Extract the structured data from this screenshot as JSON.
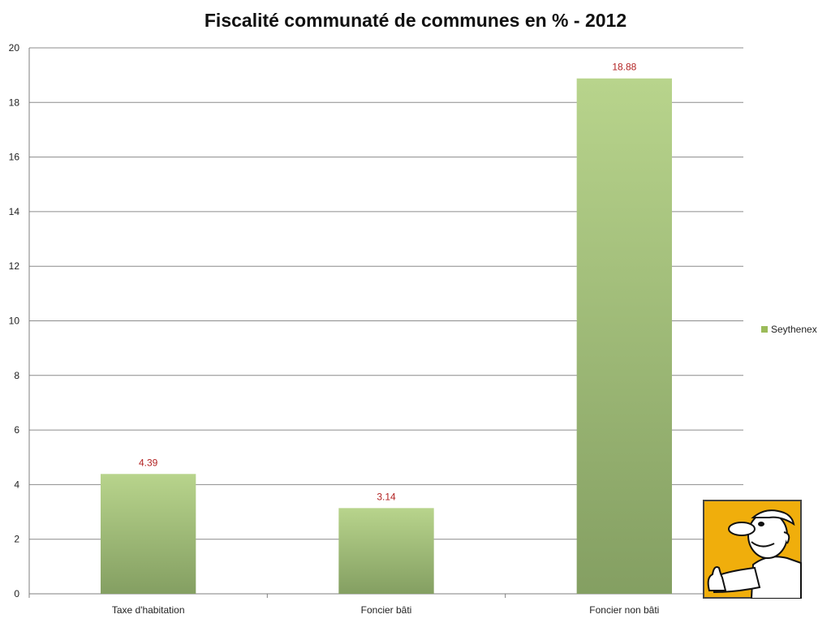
{
  "chart_data": {
    "type": "bar",
    "title": "Fiscalité communaté de communes en % - 2012",
    "xlabel": "",
    "ylabel": "",
    "categories": [
      "Taxe d'habitation",
      "Foncier bâti",
      "Foncier non bâti"
    ],
    "series": [
      {
        "name": "Seythenex",
        "values": [
          4.39,
          3.14,
          18.88
        ]
      }
    ],
    "ylim": [
      0,
      20
    ],
    "yticks": [
      0,
      2,
      4,
      6,
      8,
      10,
      12,
      14,
      16,
      18,
      20
    ],
    "data_labels": [
      "4.39",
      "3.14",
      "18.88"
    ],
    "grid": true,
    "legend_position": "right",
    "colors": {
      "bar_top": "#b8d48c",
      "bar_bottom": "#849f62",
      "data_label": "#b22222",
      "legend_swatch": "#9bbb59",
      "gridline": "#8c8c8c"
    }
  },
  "mascot": {
    "icon": "thumbs-up-cartoon-man-icon",
    "background": "#f0ae0c"
  }
}
